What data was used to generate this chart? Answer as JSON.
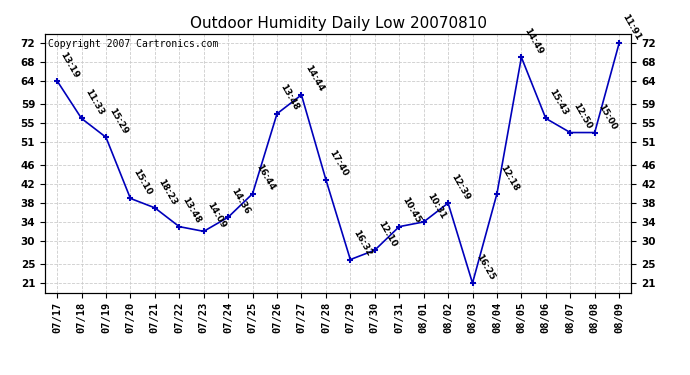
{
  "title": "Outdoor Humidity Daily Low 20070810",
  "copyright": "Copyright 2007 Cartronics.com",
  "x_labels": [
    "07/17",
    "07/18",
    "07/19",
    "07/20",
    "07/21",
    "07/22",
    "07/23",
    "07/24",
    "07/25",
    "07/26",
    "07/27",
    "07/28",
    "07/29",
    "07/30",
    "07/31",
    "08/01",
    "08/02",
    "08/03",
    "08/04",
    "08/05",
    "08/06",
    "08/07",
    "08/08",
    "08/09"
  ],
  "y_values": [
    64,
    56,
    52,
    39,
    37,
    33,
    32,
    35,
    40,
    57,
    61,
    43,
    26,
    28,
    33,
    34,
    38,
    21,
    40,
    69,
    56,
    53,
    53,
    72
  ],
  "point_labels": [
    "13:19",
    "11:33",
    "15:29",
    "15:10",
    "18:23",
    "13:48",
    "14:09",
    "14:36",
    "16:44",
    "13:48",
    "14:44",
    "17:40",
    "16:32",
    "12:10",
    "10:45",
    "10:31",
    "12:39",
    "16:25",
    "12:18",
    "14:49",
    "15:43",
    "12:50",
    "15:00",
    "11:91"
  ],
  "y_ticks": [
    21,
    25,
    30,
    34,
    38,
    42,
    46,
    51,
    55,
    59,
    64,
    68,
    72
  ],
  "ylim": [
    19,
    74
  ],
  "line_color": "#0000bb",
  "marker_color": "#0000bb",
  "grid_color": "#cccccc",
  "bg_color": "#ffffff",
  "title_fontsize": 11,
  "label_fontsize": 6.5,
  "copyright_fontsize": 7,
  "tick_fontsize": 7.5
}
